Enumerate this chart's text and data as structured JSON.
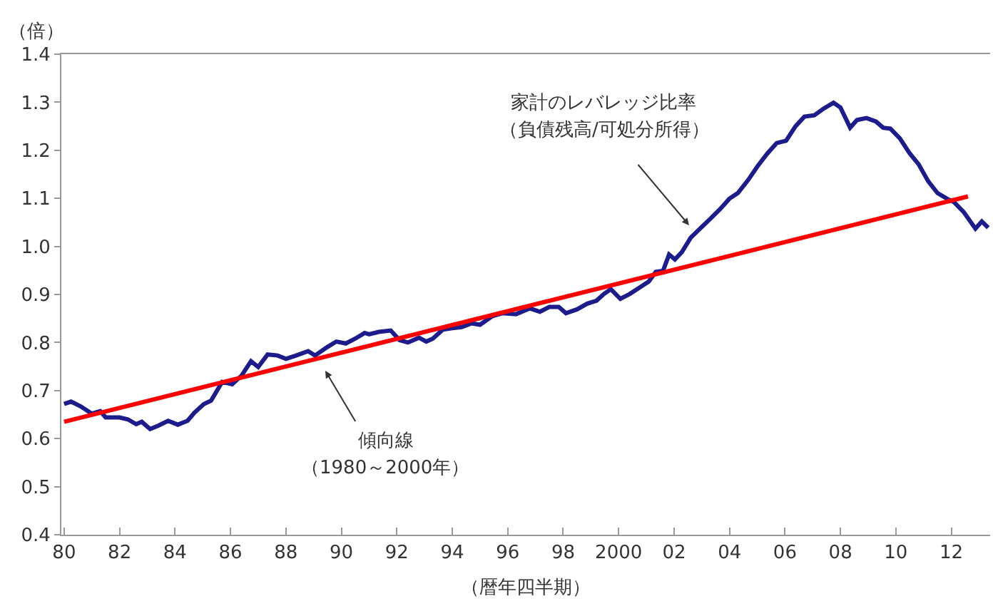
{
  "chart_data": {
    "type": "line",
    "ylabel": "（倍）",
    "xlabel": "（暦年四半期）",
    "xlim": [
      1979.9,
      2013.4
    ],
    "xticks": [
      {
        "value": 1980,
        "label": "80"
      },
      {
        "value": 1982,
        "label": "82"
      },
      {
        "value": 1984,
        "label": "84"
      },
      {
        "value": 1986,
        "label": "86"
      },
      {
        "value": 1988,
        "label": "88"
      },
      {
        "value": 1990,
        "label": "90"
      },
      {
        "value": 1992,
        "label": "92"
      },
      {
        "value": 1994,
        "label": "94"
      },
      {
        "value": 1996,
        "label": "96"
      },
      {
        "value": 1998,
        "label": "98"
      },
      {
        "value": 2000,
        "label": "2000"
      },
      {
        "value": 2002,
        "label": "02"
      },
      {
        "value": 2004,
        "label": "04"
      },
      {
        "value": 2006,
        "label": "06"
      },
      {
        "value": 2008,
        "label": "08"
      },
      {
        "value": 2010,
        "label": "10"
      },
      {
        "value": 2012,
        "label": "12"
      }
    ],
    "ylim": [
      0.4,
      1.4
    ],
    "yticks": [
      {
        "value": 0.4,
        "label": "0.4"
      },
      {
        "value": 0.5,
        "label": "0.5"
      },
      {
        "value": 0.6,
        "label": "0.6"
      },
      {
        "value": 0.7,
        "label": "0.7"
      },
      {
        "value": 0.8,
        "label": "0.8"
      },
      {
        "value": 0.9,
        "label": "0.9"
      },
      {
        "value": 1.0,
        "label": "1.0"
      },
      {
        "value": 1.1,
        "label": "1.1"
      },
      {
        "value": 1.2,
        "label": "1.2"
      },
      {
        "value": 1.3,
        "label": "1.3"
      },
      {
        "value": 1.4,
        "label": "1.4"
      }
    ],
    "marker": "none",
    "line_style": "solid",
    "series": [
      {
        "color": "#1c1c8c",
        "x": [
          1980.0,
          1980.25,
          1980.6,
          1981.0,
          1981.3,
          1981.5,
          1982.0,
          1982.3,
          1982.6,
          1982.8,
          1983.1,
          1983.4,
          1983.75,
          1984.1,
          1984.45,
          1984.7,
          1985.04,
          1985.3,
          1985.7,
          1986.06,
          1986.4,
          1986.74,
          1987.0,
          1987.34,
          1987.7,
          1988.0,
          1988.37,
          1988.8,
          1989.05,
          1989.48,
          1989.82,
          1990.16,
          1990.5,
          1990.84,
          1991.0,
          1991.35,
          1991.78,
          1992.1,
          1992.4,
          1992.8,
          1993.06,
          1993.3,
          1993.66,
          1994.0,
          1994.34,
          1994.7,
          1995.0,
          1995.45,
          1995.8,
          1996.3,
          1996.8,
          1997.16,
          1997.5,
          1997.84,
          1998.1,
          1998.5,
          1998.87,
          1999.2,
          1999.47,
          1999.72,
          2000.06,
          2000.4,
          2000.75,
          2001.09,
          2001.34,
          2001.6,
          2001.82,
          2002.03,
          2002.28,
          2002.6,
          2002.97,
          2003.3,
          2003.65,
          2003.99,
          2004.3,
          2004.67,
          2005.0,
          2005.36,
          2005.7,
          2006.04,
          2006.38,
          2006.7,
          2007.06,
          2007.4,
          2007.75,
          2008.0,
          2008.35,
          2008.6,
          2008.94,
          2009.28,
          2009.54,
          2009.8,
          2010.14,
          2010.48,
          2010.82,
          2011.16,
          2011.5,
          2011.85,
          2012.1,
          2012.44,
          2012.87,
          2013.1,
          2013.33
        ],
        "values": [
          0.672,
          0.677,
          0.667,
          0.652,
          0.657,
          0.644,
          0.644,
          0.64,
          0.63,
          0.635,
          0.62,
          0.627,
          0.637,
          0.629,
          0.637,
          0.654,
          0.672,
          0.679,
          0.718,
          0.713,
          0.731,
          0.761,
          0.749,
          0.775,
          0.773,
          0.766,
          0.773,
          0.782,
          0.773,
          0.79,
          0.802,
          0.798,
          0.808,
          0.82,
          0.817,
          0.822,
          0.825,
          0.805,
          0.8,
          0.81,
          0.802,
          0.808,
          0.827,
          0.83,
          0.832,
          0.84,
          0.837,
          0.855,
          0.861,
          0.859,
          0.871,
          0.864,
          0.874,
          0.874,
          0.861,
          0.869,
          0.881,
          0.887,
          0.901,
          0.911,
          0.891,
          0.901,
          0.914,
          0.927,
          0.947,
          0.949,
          0.983,
          0.973,
          0.988,
          1.018,
          1.039,
          1.057,
          1.077,
          1.099,
          1.111,
          1.138,
          1.166,
          1.193,
          1.215,
          1.22,
          1.25,
          1.27,
          1.273,
          1.287,
          1.299,
          1.289,
          1.247,
          1.263,
          1.267,
          1.26,
          1.247,
          1.245,
          1.225,
          1.195,
          1.171,
          1.136,
          1.111,
          1.099,
          1.092,
          1.072,
          1.037,
          1.052,
          1.039
        ]
      },
      {
        "color": "#ff0000",
        "x": [
          1980.0,
          2012.6
        ],
        "values": [
          0.635,
          1.104
        ]
      }
    ],
    "annotations": [
      "家計のレバレッジ比率",
      "（負債残高/可処分所得）",
      "傾向線",
      "（1980～2000年）"
    ]
  }
}
